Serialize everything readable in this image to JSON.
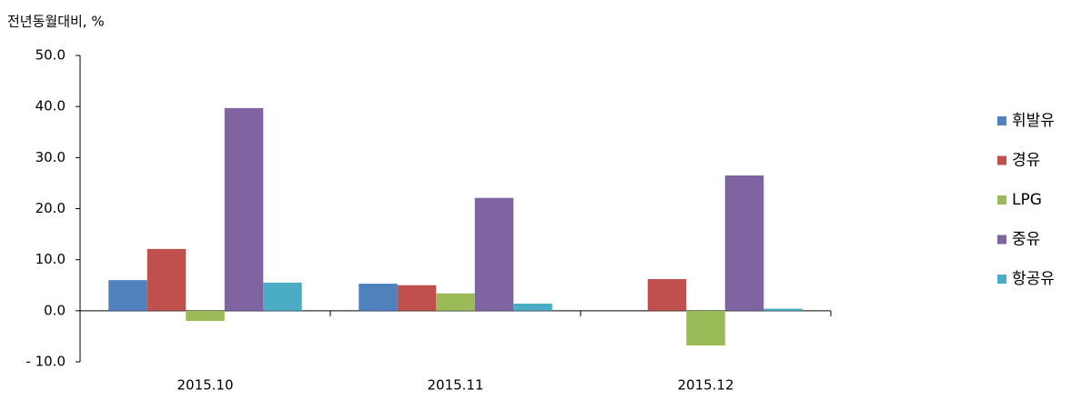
{
  "chart_data": {
    "type": "bar",
    "y_axis_label": "전년동월대비, %",
    "categories": [
      "2015.10",
      "2015.11",
      "2015.12"
    ],
    "series": [
      {
        "name": "휘발유",
        "color": "#4f81bd",
        "values": [
          6.0,
          5.3,
          0
        ]
      },
      {
        "name": "경유",
        "color": "#c0504d",
        "values": [
          12.1,
          5.0,
          6.2
        ]
      },
      {
        "name": "LPG",
        "color": "#9bbb59",
        "values": [
          -2.0,
          3.4,
          -6.8
        ]
      },
      {
        "name": "중유",
        "color": "#8064a2",
        "values": [
          39.7,
          22.1,
          26.5
        ]
      },
      {
        "name": "항공유",
        "color": "#4bacc6",
        "values": [
          5.5,
          1.4,
          0.4
        ]
      }
    ],
    "ylim": [
      -10,
      50
    ],
    "yticks": [
      {
        "value": -10,
        "label": "- 10.0"
      },
      {
        "value": 0,
        "label": "0.0"
      },
      {
        "value": 10,
        "label": "10.0"
      },
      {
        "value": 20,
        "label": "20.0"
      },
      {
        "value": 30,
        "label": "30.0"
      },
      {
        "value": 40,
        "label": "40.0"
      },
      {
        "value": 50,
        "label": "50.0"
      }
    ],
    "legend": "right"
  }
}
